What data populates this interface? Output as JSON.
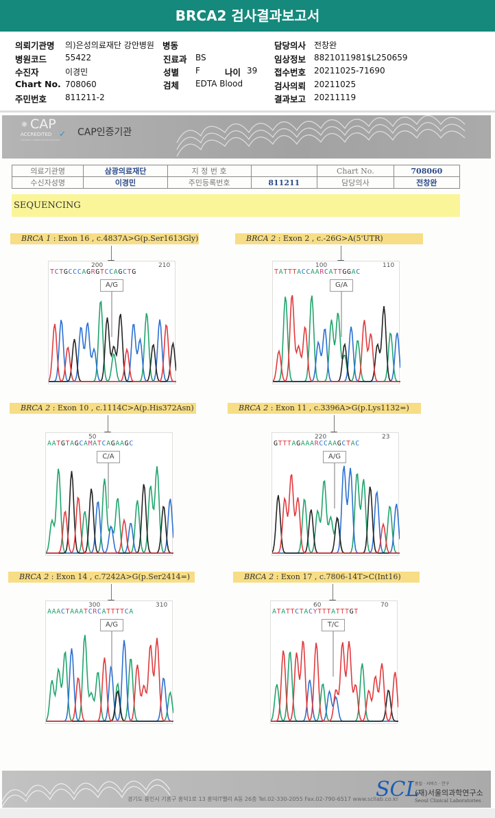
{
  "header": {
    "title": "BRCA2 검사결과보고서"
  },
  "info": {
    "institution_label": "의뢰기관명",
    "institution": "의)은성의료재단 강안병원",
    "ward_label": "병동",
    "doctor_label": "담당의사",
    "doctor": "전창완",
    "hospital_code_label": "병원코드",
    "hospital_code": "55422",
    "dept_label": "진료과",
    "dept": "BS",
    "clinical_label": "임상정보",
    "clinical": "8821011981$L250659",
    "patient_label": "수진자",
    "patient": "이경민",
    "sex_label": "성별",
    "sex": "F",
    "age_label": "나이",
    "age": "39",
    "receipt_label": "접수번호",
    "receipt": "20211025-71690",
    "chart_label": "Chart No.",
    "chart": "708060",
    "specimen_label": "검체",
    "specimen": "EDTA Blood",
    "request_label": "검사의뢰",
    "request": "20211025",
    "id_label": "주민번호",
    "id": "811211-2",
    "report_label": "결과보고",
    "report": "20211119"
  },
  "cap": {
    "logo": "CAP",
    "logo_sub": "ACCREDITED",
    "logo_small": "COLLEGE of AMERICAN PATHOLOGISTS",
    "title": "CAP인증기관"
  },
  "table": {
    "r1": [
      "의료기관명",
      "삼광의료재단",
      "지 정 번 호",
      "",
      "Chart No.",
      "708060"
    ],
    "r2": [
      "수신자성명",
      "이경민",
      "주민등록번호",
      "811211",
      "담당의사",
      "전창완"
    ]
  },
  "section": "SEQUENCING",
  "variants": [
    {
      "gene": "BRCA 1",
      "desc": " : Exon 16 , c.4837A>G(p.Ser1613Gly)",
      "n1": "200",
      "n2": "210",
      "seq": "TCTGCCCAGRGTCCAGCTG",
      "call": "A/G"
    },
    {
      "gene": "BRCA 2",
      "desc": " : Exon 2 , c.-26G>A(5'UTR)",
      "n1": "100",
      "n2": "110",
      "seq": "TATTTACCAARCATTGGAC",
      "call": "G/A"
    },
    {
      "gene": "BRCA 2",
      "desc": " : Exon 10 , c.1114C>A(p.His372Asn)",
      "n1": "50",
      "n2": "",
      "seq": "AATGTAGCAMATCAGAAGC",
      "call": "C/A"
    },
    {
      "gene": "BRCA 2",
      "desc": " : Exon 11 , c.3396A>G(p.Lys1132=)",
      "n1": "220",
      "n2": "23",
      "seq": "GTTTAGAAARCCAAGCTAC",
      "call": "A/G"
    },
    {
      "gene": "BRCA 2",
      "desc": " : Exon 14 , c.7242A>G(p.Ser2414=)",
      "n1": "300",
      "n2": "310",
      "seq": "AAACTAAATCRCATTTTCA",
      "call": "A/G"
    },
    {
      "gene": "BRCA 2",
      "desc": " : Exon 17 , c.7806-14T>C(Int16)",
      "n1": "60",
      "n2": "70",
      "seq": "ATATTCTACYTTTATTTGT",
      "call": "T/C"
    }
  ],
  "footer": {
    "address": "경기도 용인시 기흥구 흥덕1로 13 흥덕IT밸리 A동 26층  Tel.02-330-2055  Fax.02-790-6517  www.scllab.co.kr",
    "logo": "SCL",
    "tagline": "품질 · 서비스 · 연구",
    "org": "(재)서울의과학연구소",
    "org_en": "Seoul Clinical Laboratories"
  },
  "colors": {
    "header": "#14897c",
    "A": "#1fa36b",
    "C": "#2a6fd0",
    "G": "#222222",
    "T": "#e0383b",
    "ambig": "#d04080"
  }
}
